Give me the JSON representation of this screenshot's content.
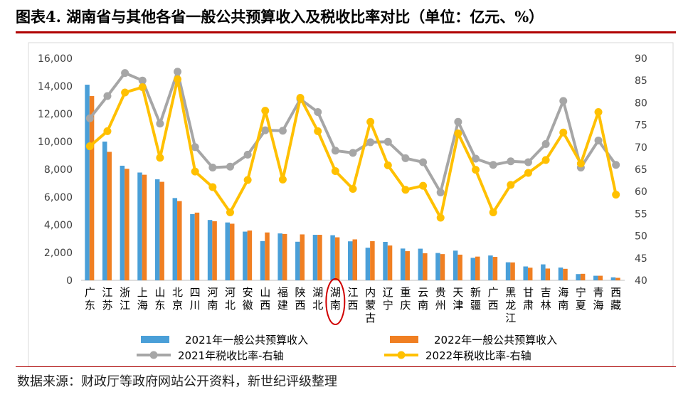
{
  "title": "图表4. 湖南省与其他各省一般公共预算收入及税收比率对比（单位：亿元、%）",
  "source": "数据来源：财政厅等政府网站公开资料，新世纪评级整理",
  "colors": {
    "rev2021": "#4a9fd8",
    "rev2022": "#f07f22",
    "tax2021": "#a6a6a6",
    "tax2022": "#ffc000",
    "highlight": "#d00000"
  },
  "chart_data": {
    "type": "bar+line",
    "categories": [
      "广东",
      "江苏",
      "浙江",
      "上海",
      "山东",
      "北京",
      "四川",
      "河南",
      "河北",
      "安徽",
      "山西",
      "福建",
      "陕西",
      "湖北",
      "湖南",
      "江西",
      "内蒙古",
      "辽宁",
      "重庆",
      "云南",
      "贵州",
      "天津",
      "新疆",
      "广西",
      "黑龙江",
      "甘肃",
      "吉林",
      "海南",
      "宁夏",
      "青海",
      "西藏"
    ],
    "highlight_category": "湖南",
    "y_left": {
      "min": 0,
      "max": 16000,
      "step": 2000,
      "ticks": [
        "0",
        "2,000",
        "4,000",
        "6,000",
        "8,000",
        "10,000",
        "12,000",
        "14,000",
        "16,000"
      ]
    },
    "y_right": {
      "min": 40,
      "max": 90,
      "step": 5,
      "ticks": [
        "40",
        "45",
        "50",
        "55",
        "60",
        "65",
        "70",
        "75",
        "80",
        "85",
        "90"
      ]
    },
    "grid": false,
    "legend_position": "bottom",
    "series": [
      {
        "name": "2021年一般公共预算收入",
        "kind": "bar",
        "axis": "left",
        "values": [
          14100,
          10000,
          8260,
          7770,
          7280,
          5930,
          4770,
          4350,
          4170,
          3510,
          2830,
          3380,
          2780,
          3280,
          3250,
          2810,
          2350,
          2770,
          2290,
          2280,
          1970,
          2140,
          1620,
          1790,
          1300,
          1000,
          1150,
          920,
          450,
          330,
          215
        ]
      },
      {
        "name": "2022年一般公共预算收入",
        "kind": "bar",
        "axis": "left",
        "values": [
          13280,
          9260,
          8040,
          7610,
          7100,
          5710,
          4880,
          4260,
          4080,
          3590,
          3450,
          3340,
          3310,
          3280,
          3100,
          2950,
          2820,
          2510,
          2100,
          1950,
          1890,
          1850,
          1710,
          1690,
          1290,
          910,
          850,
          830,
          470,
          330,
          180
        ]
      },
      {
        "name": "2021年税收比率-右轴",
        "kind": "line",
        "axis": "right",
        "values": [
          76.5,
          81.5,
          86.7,
          85.0,
          75.3,
          87.0,
          70.0,
          65.4,
          65.6,
          68.3,
          73.8,
          73.7,
          80.8,
          77.9,
          69.2,
          68.7,
          71.1,
          71.2,
          67.5,
          66.6,
          59.8,
          75.7,
          67.4,
          66.0,
          66.8,
          66.6,
          70.7,
          80.4,
          65.4,
          71.5,
          66.0
        ]
      },
      {
        "name": "2022年税收比率-右轴",
        "kind": "line",
        "axis": "right",
        "values": [
          70.2,
          73.6,
          82.3,
          83.5,
          67.6,
          85.3,
          64.5,
          61.0,
          55.3,
          62.6,
          78.2,
          62.7,
          81.1,
          73.6,
          64.6,
          60.6,
          75.7,
          65.9,
          60.4,
          61.3,
          54.1,
          73.1,
          64.9,
          55.3,
          61.5,
          64.2,
          67.1,
          73.3,
          66.3,
          77.9,
          59.3
        ]
      }
    ]
  }
}
